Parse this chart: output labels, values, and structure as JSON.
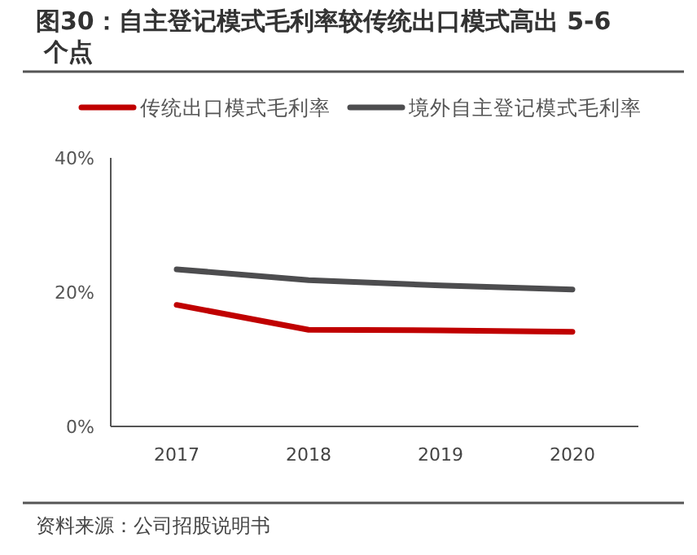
{
  "chart_data": {
    "type": "line",
    "title": "图30：自主登记模式毛利率较传统出口模式高出 5-6 个点",
    "categories": [
      "2017",
      "2018",
      "2019",
      "2020"
    ],
    "series": [
      {
        "name": "传统出口模式毛利率",
        "color": "#c00000",
        "values": [
          18.1,
          14.4,
          14.3,
          14.1
        ]
      },
      {
        "name": "境外自主登记模式毛利率",
        "color": "#4d4d4f",
        "values": [
          23.4,
          21.8,
          21.0,
          20.4
        ]
      }
    ],
    "ylim": [
      0,
      40
    ],
    "yticks": [
      {
        "value": 0,
        "label": "0%"
      },
      {
        "value": 20,
        "label": "20%"
      },
      {
        "value": 40,
        "label": "40%"
      }
    ],
    "grid": false,
    "legend": "top",
    "marker": "none",
    "line_style": "solid",
    "annotations": [
      "资料来源：公司招股说明书"
    ]
  }
}
